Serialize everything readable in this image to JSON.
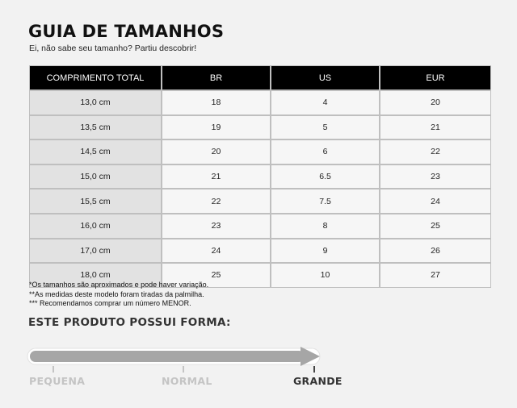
{
  "header": {
    "title": "GUIA DE TAMANHOS",
    "subtitle": "Ei, não sabe seu tamanho? Partiu descobrir!"
  },
  "size_table": {
    "columns": [
      "COMPRIMENTO TOTAL",
      "BR",
      "US",
      "EUR"
    ],
    "rows": [
      [
        "13,0 cm",
        "18",
        "4",
        "20"
      ],
      [
        "13,5 cm",
        "19",
        "5",
        "21"
      ],
      [
        "14,5 cm",
        "20",
        "6",
        "22"
      ],
      [
        "15,0 cm",
        "21",
        "6.5",
        "23"
      ],
      [
        "15,5 cm",
        "22",
        "7.5",
        "24"
      ],
      [
        "16,0 cm",
        "23",
        "8",
        "25"
      ],
      [
        "17,0 cm",
        "24",
        "9",
        "26"
      ],
      [
        "18,0 cm",
        "25",
        "10",
        "27"
      ]
    ]
  },
  "notes": [
    "*Os tamanhos são aproximados e pode haver variação.",
    "**As medidas deste modelo foram tiradas da palmilha.",
    "*** Recomendamos comprar um número MENOR."
  ],
  "fit": {
    "title": "ESTE PRODUTO POSSUI FORMA:",
    "labels": {
      "small": "PEQUENA",
      "normal": "NORMAL",
      "large": "GRANDE"
    },
    "selected": "GRANDE",
    "colors": {
      "bar": "#a6a6a6",
      "inactive": "#c4c4c4",
      "active": "#333333"
    },
    "icons": {
      "arrow": "arrow-right-icon"
    }
  }
}
